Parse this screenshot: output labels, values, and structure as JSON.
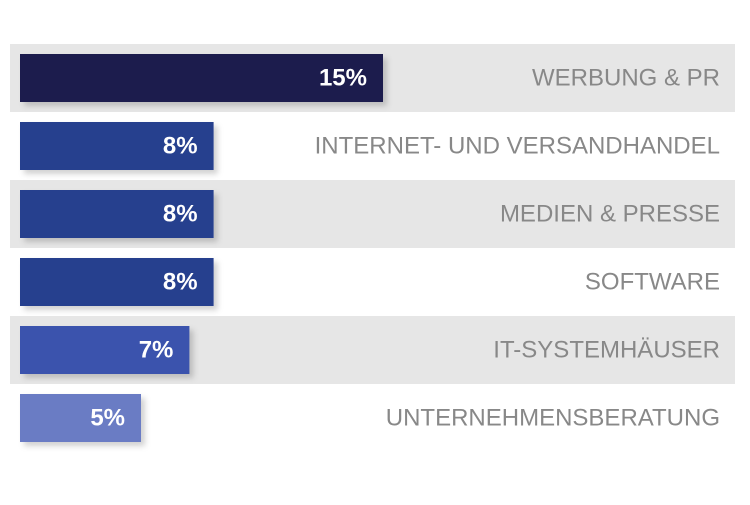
{
  "chart_data": {
    "type": "bar",
    "orientation": "horizontal",
    "categories": [
      "WERBUNG & PR",
      "INTERNET- UND VERSANDHANDEL",
      "MEDIEN & PRESSE",
      "SOFTWARE",
      "IT-SYSTEMHÄUSER",
      "UNTERNEHMENSBERATUNG"
    ],
    "values": [
      15,
      8,
      8,
      8,
      7,
      5
    ],
    "value_labels": [
      "15%",
      "8%",
      "8%",
      "8%",
      "7%",
      "5%"
    ],
    "colors": [
      "#1b1f4e",
      "#273f8e",
      "#273f8e",
      "#273f8e",
      "#3a53ad",
      "#6a7bc4"
    ]
  }
}
